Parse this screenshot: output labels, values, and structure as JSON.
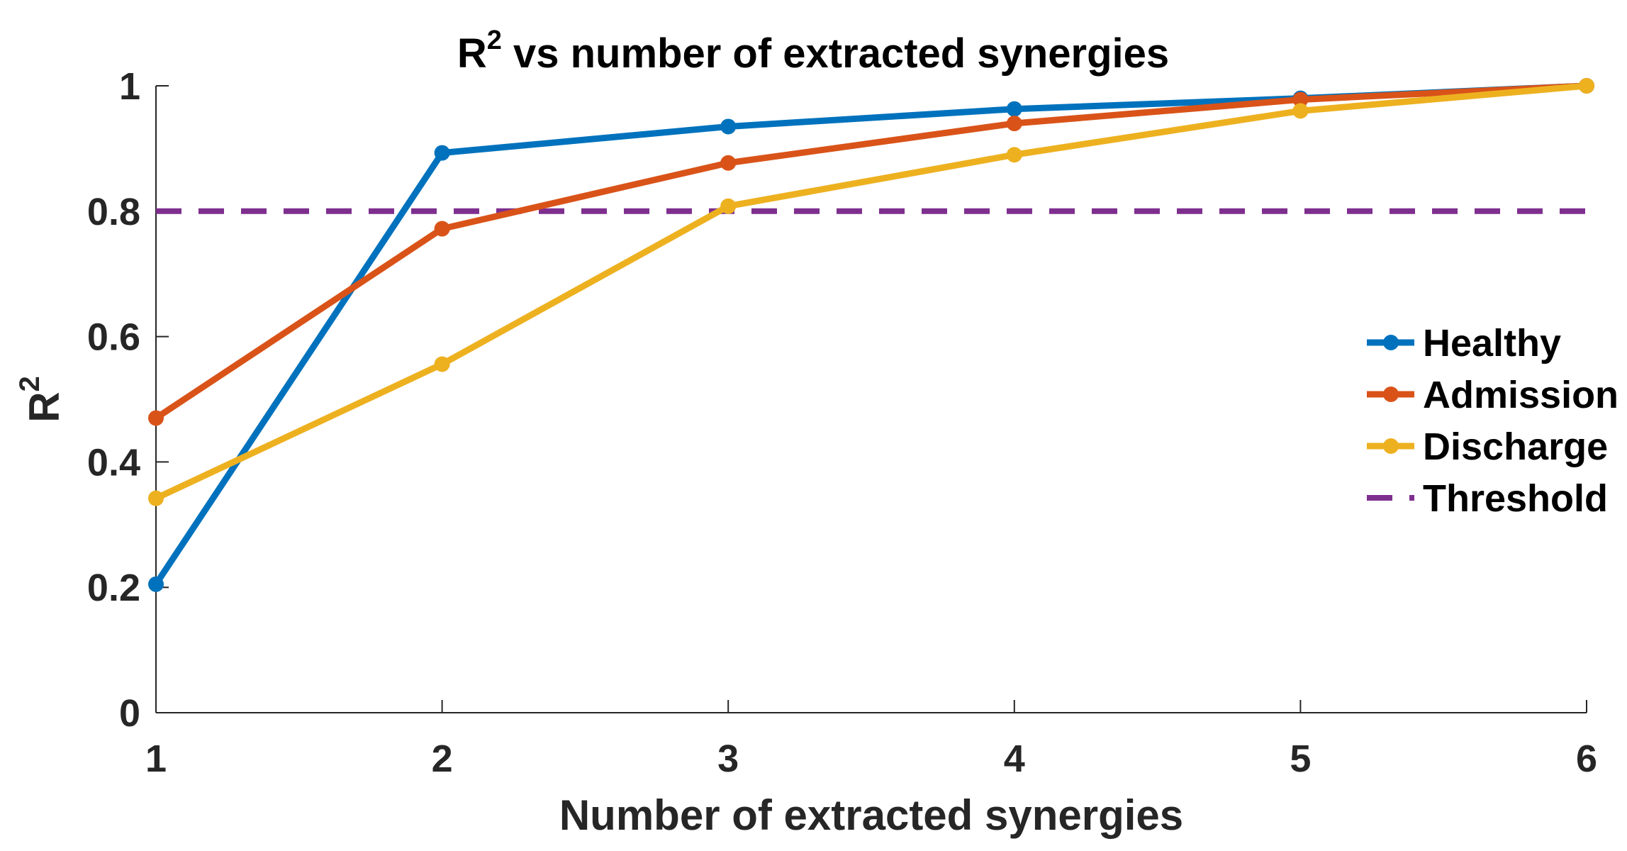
{
  "chart_data": {
    "type": "line",
    "title": "R",
    "title_superscript": "2",
    "title_rest": " vs number of extracted synergies",
    "xlabel": "Number of extracted synergies",
    "ylabel": "R",
    "ylabel_superscript": "2",
    "x": [
      1,
      2,
      3,
      4,
      5,
      6
    ],
    "xlim": [
      1,
      6
    ],
    "ylim": [
      0,
      1
    ],
    "xticks": [
      "1",
      "2",
      "3",
      "4",
      "5",
      "6"
    ],
    "yticks": [
      "0",
      "0.2",
      "0.4",
      "0.6",
      "0.8",
      "1"
    ],
    "ytick_values": [
      0,
      0.2,
      0.4,
      0.6,
      0.8,
      1
    ],
    "grid": false,
    "legend_position": "right",
    "series": [
      {
        "name": "Healthy",
        "color": "#0072BD",
        "values": [
          0.205,
          0.893,
          0.935,
          0.963,
          0.98,
          1.0
        ]
      },
      {
        "name": "Admission",
        "color": "#D95319",
        "values": [
          0.47,
          0.772,
          0.877,
          0.94,
          0.978,
          1.0
        ]
      },
      {
        "name": "Discharge",
        "color": "#EDB120",
        "values": [
          0.342,
          0.556,
          0.808,
          0.89,
          0.96,
          1.0
        ]
      }
    ],
    "threshold": {
      "name": "Threshold",
      "value": 0.8,
      "color": "#7E2F8E",
      "style": "dashed"
    }
  }
}
